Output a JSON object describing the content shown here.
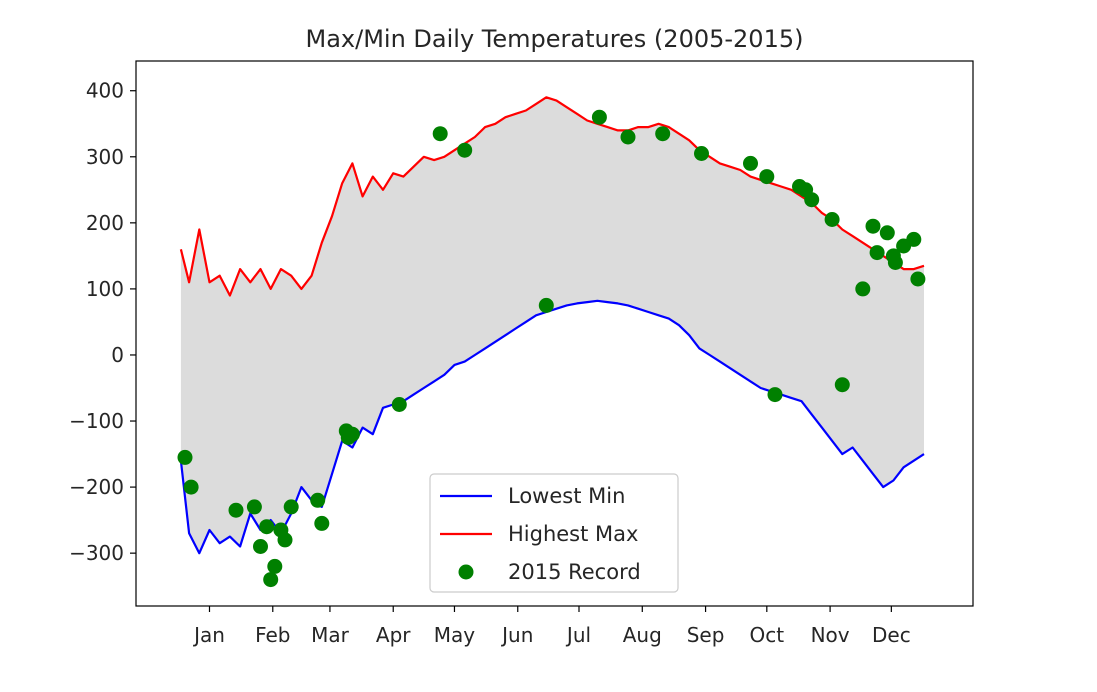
{
  "chart_data": {
    "type": "line",
    "title": "Max/Min Daily Temperatures (2005-2015)",
    "xlabel": "",
    "ylabel": "",
    "xlim": [
      -21,
      389
    ],
    "ylim": [
      -380,
      445
    ],
    "grid": false,
    "legend_position": "lower center",
    "fill_color": "#dcdcdc",
    "month_ticks": [
      {
        "day": 15,
        "label": "Jan"
      },
      {
        "day": 46,
        "label": "Feb"
      },
      {
        "day": 74,
        "label": "Mar"
      },
      {
        "day": 105,
        "label": "Apr"
      },
      {
        "day": 135,
        "label": "May"
      },
      {
        "day": 166,
        "label": "Jun"
      },
      {
        "day": 196,
        "label": "Jul"
      },
      {
        "day": 227,
        "label": "Aug"
      },
      {
        "day": 258,
        "label": "Sep"
      },
      {
        "day": 288,
        "label": "Oct"
      },
      {
        "day": 319,
        "label": "Nov"
      },
      {
        "day": 349,
        "label": "Dec"
      }
    ],
    "y_ticks": [
      {
        "value": 400,
        "label": "400"
      },
      {
        "value": 300,
        "label": "300"
      },
      {
        "value": 200,
        "label": "200"
      },
      {
        "value": 100,
        "label": "100"
      },
      {
        "value": 0,
        "label": "0"
      },
      {
        "value": -100,
        "label": "−100"
      },
      {
        "value": -200,
        "label": "−200"
      },
      {
        "value": -300,
        "label": "−300"
      }
    ],
    "series": [
      {
        "name": "Lowest Min",
        "color": "#0000ff",
        "kind": "line",
        "x": [
          1,
          5,
          10,
          15,
          20,
          25,
          30,
          35,
          40,
          45,
          50,
          55,
          60,
          65,
          70,
          75,
          80,
          85,
          90,
          95,
          100,
          105,
          110,
          115,
          120,
          125,
          130,
          135,
          140,
          145,
          150,
          155,
          160,
          165,
          170,
          175,
          180,
          185,
          190,
          195,
          200,
          205,
          210,
          215,
          220,
          225,
          230,
          235,
          240,
          245,
          250,
          255,
          260,
          265,
          270,
          275,
          280,
          285,
          290,
          295,
          300,
          305,
          310,
          315,
          320,
          325,
          330,
          335,
          340,
          345,
          350,
          355,
          360,
          365
        ],
        "y": [
          -160,
          -270,
          -300,
          -265,
          -285,
          -275,
          -290,
          -240,
          -265,
          -250,
          -270,
          -240,
          -200,
          -220,
          -230,
          -180,
          -130,
          -140,
          -110,
          -120,
          -80,
          -75,
          -70,
          -60,
          -50,
          -40,
          -30,
          -15,
          -10,
          0,
          10,
          20,
          30,
          40,
          50,
          60,
          65,
          70,
          75,
          78,
          80,
          82,
          80,
          78,
          75,
          70,
          65,
          60,
          55,
          45,
          30,
          10,
          0,
          -10,
          -20,
          -30,
          -40,
          -50,
          -55,
          -60,
          -65,
          -70,
          -90,
          -110,
          -130,
          -150,
          -140,
          -160,
          -180,
          -200,
          -190,
          -170,
          -160,
          -150
        ]
      },
      {
        "name": "Highest Max",
        "color": "#ff0000",
        "kind": "line",
        "x": [
          1,
          5,
          10,
          15,
          20,
          25,
          30,
          35,
          40,
          45,
          50,
          55,
          60,
          65,
          70,
          75,
          80,
          85,
          90,
          95,
          100,
          105,
          110,
          115,
          120,
          125,
          130,
          135,
          140,
          145,
          150,
          155,
          160,
          165,
          170,
          175,
          180,
          185,
          190,
          195,
          200,
          205,
          210,
          215,
          220,
          225,
          230,
          235,
          240,
          245,
          250,
          255,
          260,
          265,
          270,
          275,
          280,
          285,
          290,
          295,
          300,
          305,
          310,
          315,
          320,
          325,
          330,
          335,
          340,
          345,
          350,
          355,
          360,
          365
        ],
        "y": [
          160,
          110,
          190,
          110,
          120,
          90,
          130,
          110,
          130,
          100,
          130,
          120,
          100,
          120,
          170,
          210,
          260,
          290,
          240,
          270,
          250,
          275,
          270,
          285,
          300,
          295,
          300,
          310,
          320,
          330,
          345,
          350,
          360,
          365,
          370,
          380,
          390,
          385,
          375,
          365,
          355,
          350,
          345,
          340,
          340,
          345,
          345,
          350,
          345,
          335,
          325,
          310,
          300,
          290,
          285,
          280,
          270,
          265,
          260,
          255,
          250,
          240,
          230,
          215,
          205,
          190,
          180,
          170,
          160,
          150,
          140,
          130,
          130,
          135
        ]
      },
      {
        "name": "2015 Record",
        "color": "#008000",
        "kind": "scatter",
        "x": [
          3,
          6,
          28,
          37,
          40,
          43,
          45,
          47,
          50,
          52,
          55,
          68,
          70,
          82,
          83,
          85,
          108,
          128,
          140,
          180,
          206,
          220,
          237,
          256,
          280,
          288,
          292,
          304,
          307,
          310,
          320,
          325,
          335,
          340,
          342,
          347,
          350,
          351,
          355,
          360,
          362
        ],
        "y": [
          -155,
          -200,
          -235,
          -230,
          -290,
          -260,
          -340,
          -320,
          -265,
          -280,
          -230,
          -220,
          -255,
          -115,
          -125,
          -120,
          -75,
          335,
          310,
          75,
          360,
          330,
          335,
          305,
          290,
          270,
          -60,
          255,
          250,
          235,
          205,
          -45,
          100,
          195,
          155,
          185,
          150,
          140,
          165,
          175,
          115
        ]
      }
    ]
  }
}
